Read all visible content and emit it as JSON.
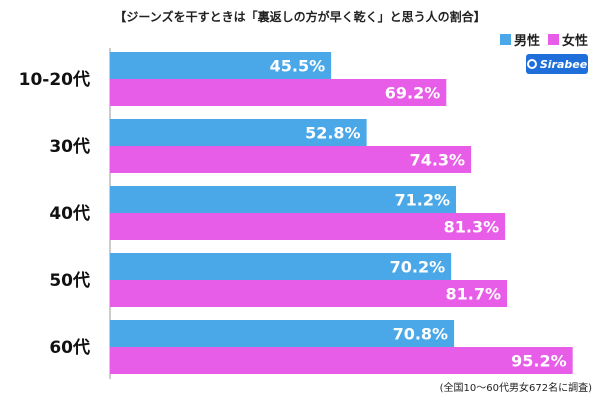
{
  "chart_data": {
    "type": "bar",
    "orientation": "horizontal",
    "title": "【ジーンズを干すときは「裏返しの方が早く乾く」と思う人の割合】",
    "categories": [
      "10-20代",
      "30代",
      "40代",
      "50代",
      "60代"
    ],
    "series": [
      {
        "name": "男性",
        "color": "#4aa8e8",
        "values": [
          45.5,
          52.8,
          71.2,
          70.2,
          70.8
        ]
      },
      {
        "name": "女性",
        "color": "#e85de8",
        "values": [
          69.2,
          74.3,
          81.3,
          81.7,
          95.2
        ]
      }
    ],
    "value_suffix": "%",
    "xlim": [
      0,
      100
    ],
    "grid": false,
    "legend_position": "top-right"
  },
  "brand": {
    "logo_text": "Sirabee"
  },
  "footnote": "(全国10～60代男女672名に調査)"
}
